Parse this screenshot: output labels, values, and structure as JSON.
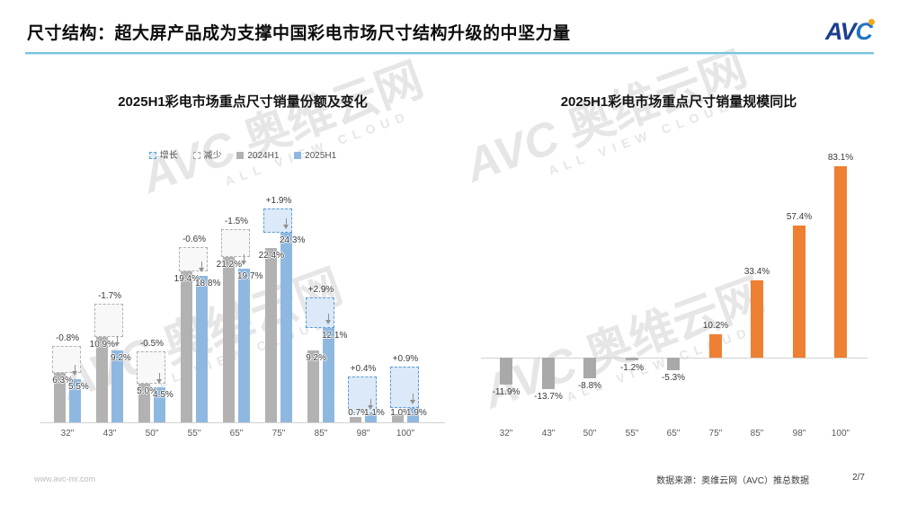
{
  "header": {
    "title": "尺寸结构：超大屏产品成为支撑中国彩电市场尺寸结构升级的中坚力量",
    "logo": {
      "av": "AV",
      "c": "C"
    }
  },
  "watermark": {
    "brand": "AVC",
    "cn": "奥维云网",
    "en": "ALL VIEW CLOUD"
  },
  "footer": {
    "website": "www.avc-mr.com",
    "source": "数据来源：奥维云网（AVC）推总数据",
    "page": "2/7"
  },
  "chart_data": [
    {
      "type": "bar",
      "title": "2025H1彩电市场重点尺寸销量份额及变化",
      "categories": [
        "32\"",
        "43\"",
        "50\"",
        "55\"",
        "65\"",
        "75\"",
        "85\"",
        "98\"",
        "100\""
      ],
      "legend": [
        {
          "label": "增长",
          "type": "growth"
        },
        {
          "label": "减少",
          "type": "decline"
        },
        {
          "label": "2024H1",
          "type": "2024"
        },
        {
          "label": "2025H1",
          "type": "2025"
        }
      ],
      "series": [
        {
          "name": "2024H1",
          "color": "#b2b2b2",
          "values": [
            6.3,
            10.9,
            5.0,
            19.4,
            21.2,
            22.4,
            9.2,
            0.7,
            1.0
          ],
          "labels": [
            "6.3%",
            "10.9%",
            "5.0%",
            "19.4%",
            "21.2%",
            "22.4%",
            "9.2%",
            "0.7%",
            "1.0%"
          ]
        },
        {
          "name": "2025H1",
          "color": "#8fb8e0",
          "values": [
            5.5,
            9.2,
            4.5,
            18.8,
            19.7,
            24.3,
            12.1,
            1.1,
            1.9
          ],
          "labels": [
            "5.5%",
            "9.2%",
            "4.5%",
            "18.8%",
            "19.7%",
            "24.3%",
            "12.1%",
            "1.1%",
            "1.9%"
          ]
        }
      ],
      "changes": {
        "values": [
          -0.8,
          -1.7,
          -0.5,
          -0.6,
          -1.5,
          1.9,
          2.9,
          0.4,
          0.9
        ],
        "labels": [
          "-0.8%",
          "-1.7%",
          "-0.5%",
          "-0.6%",
          "-1.5%",
          "+1.9%",
          "+2.9%",
          "+0.4%",
          "+0.9%"
        ]
      },
      "box_colors": {
        "growth_fill": "#dce9f8",
        "growth_border": "#5b9bd5",
        "decline_fill": "#f8f8f8",
        "decline_border": "#b0b0b0"
      },
      "ylim": [
        0,
        26
      ],
      "grid": false,
      "legend_position": "top",
      "unit": "%"
    },
    {
      "type": "bar",
      "title": "2025H1彩电市场重点尺寸销量规模同比",
      "categories": [
        "32\"",
        "43\"",
        "50\"",
        "55\"",
        "65\"",
        "75\"",
        "85\"",
        "98\"",
        "100\""
      ],
      "values": [
        -11.9,
        -13.7,
        -8.8,
        -1.2,
        -5.3,
        10.2,
        33.4,
        57.4,
        83.1
      ],
      "labels": [
        "-11.9%",
        "-13.7%",
        "-8.8%",
        "-1.2%",
        "-5.3%",
        "10.2%",
        "33.4%",
        "57.4%",
        "83.1%"
      ],
      "colors": {
        "negative": "#a9a9a9",
        "positive": "#ed8033"
      },
      "ylim": [
        -15,
        90
      ],
      "grid": false,
      "unit": "%"
    }
  ]
}
